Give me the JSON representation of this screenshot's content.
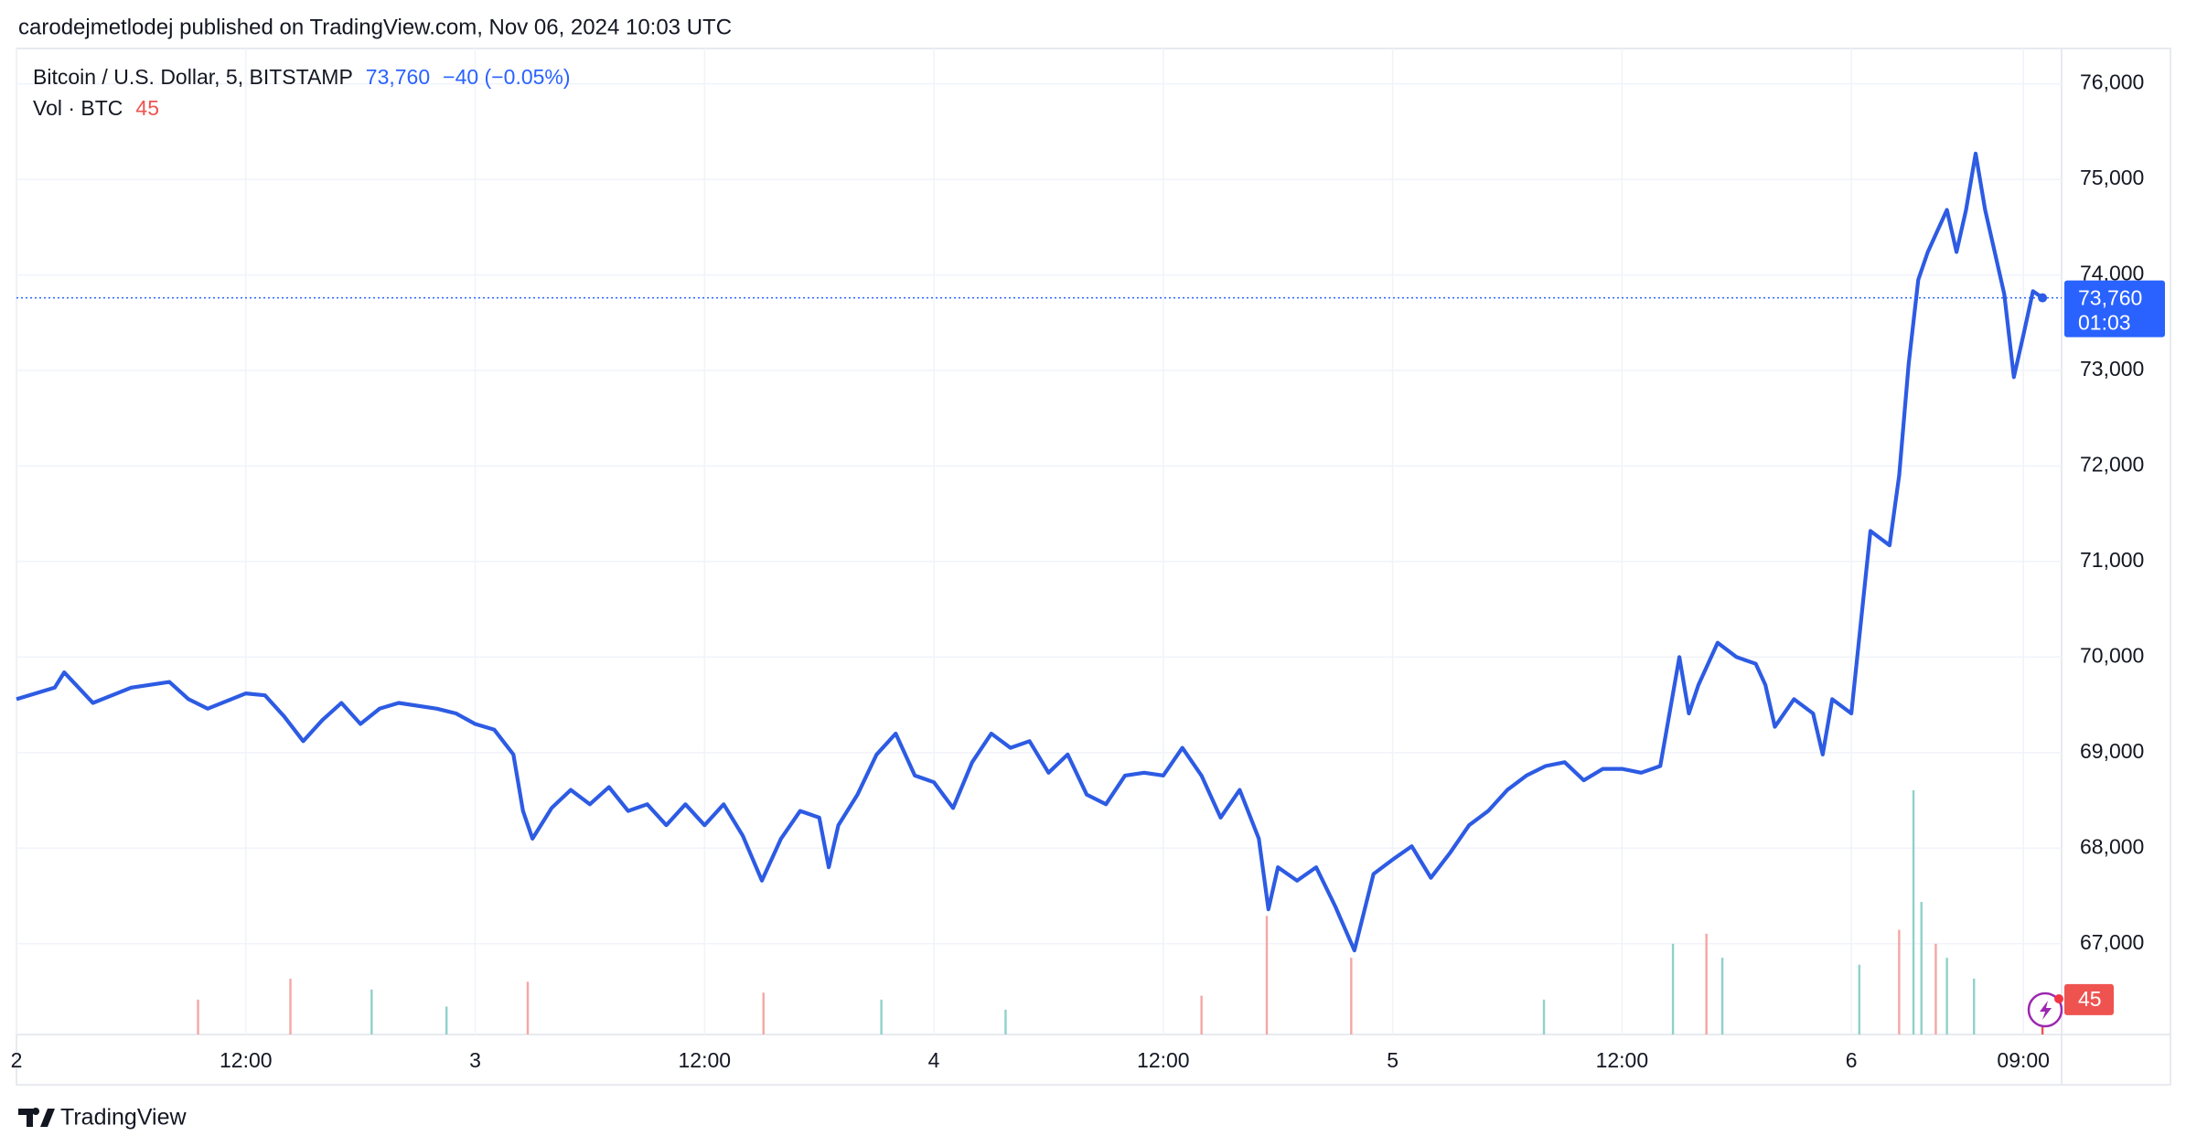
{
  "header": {
    "text": "carodejmetlodej published on TradingView.com, Nov 06, 2024 10:03 UTC"
  },
  "footer": {
    "brand": "TradingView"
  },
  "chart_data": {
    "type": "line",
    "grid": true,
    "x": [
      "2024-11-02 00:00",
      "2024-11-02 02:00",
      "2024-11-02 02:30",
      "2024-11-02 04:00",
      "2024-11-02 06:00",
      "2024-11-02 08:00",
      "2024-11-02 09:00",
      "2024-11-02 10:00",
      "2024-11-02 12:00",
      "2024-11-02 13:00",
      "2024-11-02 14:00",
      "2024-11-02 15:00",
      "2024-11-02 16:00",
      "2024-11-02 17:00",
      "2024-11-02 18:00",
      "2024-11-02 19:00",
      "2024-11-02 20:00",
      "2024-11-02 22:00",
      "2024-11-02 23:00",
      "2024-11-03 00:00",
      "2024-11-03 01:00",
      "2024-11-03 02:00",
      "2024-11-03 02:30",
      "2024-11-03 03:00",
      "2024-11-03 04:00",
      "2024-11-03 05:00",
      "2024-11-03 06:00",
      "2024-11-03 07:00",
      "2024-11-03 08:00",
      "2024-11-03 09:00",
      "2024-11-03 10:00",
      "2024-11-03 11:00",
      "2024-11-03 12:00",
      "2024-11-03 13:00",
      "2024-11-03 14:00",
      "2024-11-03 15:00",
      "2024-11-03 16:00",
      "2024-11-03 17:00",
      "2024-11-03 18:00",
      "2024-11-03 18:30",
      "2024-11-03 19:00",
      "2024-11-03 20:00",
      "2024-11-03 21:00",
      "2024-11-03 22:00",
      "2024-11-03 23:00",
      "2024-11-04 00:00",
      "2024-11-04 01:00",
      "2024-11-04 02:00",
      "2024-11-04 03:00",
      "2024-11-04 04:00",
      "2024-11-04 05:00",
      "2024-11-04 06:00",
      "2024-11-04 07:00",
      "2024-11-04 08:00",
      "2024-11-04 09:00",
      "2024-11-04 10:00",
      "2024-11-04 11:00",
      "2024-11-04 12:00",
      "2024-11-04 13:00",
      "2024-11-04 14:00",
      "2024-11-04 15:00",
      "2024-11-04 16:00",
      "2024-11-04 17:00",
      "2024-11-04 17:30",
      "2024-11-04 18:00",
      "2024-11-04 19:00",
      "2024-11-04 20:00",
      "2024-11-04 21:00",
      "2024-11-04 22:00",
      "2024-11-04 23:00",
      "2024-11-05 00:00",
      "2024-11-05 01:00",
      "2024-11-05 02:00",
      "2024-11-05 03:00",
      "2024-11-05 04:00",
      "2024-11-05 05:00",
      "2024-11-05 06:00",
      "2024-11-05 07:00",
      "2024-11-05 08:00",
      "2024-11-05 09:00",
      "2024-11-05 10:00",
      "2024-11-05 11:00",
      "2024-11-05 12:00",
      "2024-11-05 13:00",
      "2024-11-05 14:00",
      "2024-11-05 15:00",
      "2024-11-05 15:30",
      "2024-11-05 16:00",
      "2024-11-05 17:00",
      "2024-11-05 18:00",
      "2024-11-05 19:00",
      "2024-11-05 19:30",
      "2024-11-05 20:00",
      "2024-11-05 21:00",
      "2024-11-05 22:00",
      "2024-11-05 22:30",
      "2024-11-05 23:00",
      "2024-11-06 00:00",
      "2024-11-06 01:00",
      "2024-11-06 02:00",
      "2024-11-06 02:30",
      "2024-11-06 03:00",
      "2024-11-06 03:30",
      "2024-11-06 04:00",
      "2024-11-06 05:00",
      "2024-11-06 05:30",
      "2024-11-06 06:00",
      "2024-11-06 06:30",
      "2024-11-06 07:00",
      "2024-11-06 08:00",
      "2024-11-06 08:30",
      "2024-11-06 09:00",
      "2024-11-06 09:30",
      "2024-11-06 10:00"
    ],
    "series": [
      {
        "name": "Bitcoin / U.S. Dollar, 5, BITSTAMP",
        "color": "#2d5be3",
        "values": [
          69560,
          69680,
          69840,
          69520,
          69680,
          69740,
          69560,
          69460,
          69620,
          69600,
          69380,
          69120,
          69340,
          69520,
          69300,
          69460,
          69520,
          69460,
          69410,
          69300,
          69240,
          68980,
          68390,
          68100,
          68420,
          68610,
          68460,
          68640,
          68390,
          68460,
          68240,
          68460,
          68240,
          68460,
          68130,
          67660,
          68100,
          68390,
          68320,
          67800,
          68240,
          68560,
          68980,
          69200,
          68760,
          68690,
          68420,
          68900,
          69200,
          69050,
          69120,
          68790,
          68980,
          68560,
          68460,
          68760,
          68790,
          68760,
          69050,
          68760,
          68320,
          68610,
          68100,
          67360,
          67800,
          67660,
          67800,
          67390,
          66930,
          67730,
          67880,
          68020,
          67690,
          67950,
          68240,
          68390,
          68610,
          68760,
          68860,
          68900,
          68710,
          68830,
          68830,
          68790,
          68860,
          70000,
          69410,
          69710,
          70150,
          70000,
          69930,
          69710,
          69270,
          69560,
          69410,
          68980,
          69560,
          69410,
          71320,
          71170,
          71900,
          73070,
          73950,
          74240,
          74680,
          74240,
          74680,
          75270,
          74680,
          73800,
          72930,
          73370,
          73830,
          73760
        ]
      }
    ],
    "last_price": {
      "value": 73760,
      "label": "73,760",
      "change": -40,
      "change_label": "−40 (−0.05%)",
      "countdown": "01:03"
    },
    "volume": {
      "name": "Vol · BTC",
      "x": [
        "2024-11-02 09:30",
        "2024-11-02 14:20",
        "2024-11-02 18:35",
        "2024-11-02 22:30",
        "2024-11-03 02:45",
        "2024-11-03 15:05",
        "2024-11-03 21:15",
        "2024-11-04 03:45",
        "2024-11-04 14:00",
        "2024-11-04 17:25",
        "2024-11-04 21:50",
        "2024-11-05 07:55",
        "2024-11-05 14:40",
        "2024-11-05 16:25",
        "2024-11-05 17:15",
        "2024-11-06 00:25",
        "2024-11-06 02:30",
        "2024-11-06 03:15",
        "2024-11-06 03:40",
        "2024-11-06 04:25",
        "2024-11-06 05:00",
        "2024-11-06 06:25",
        "2024-11-06 10:00"
      ],
      "values": [
        45,
        72,
        58,
        36,
        68,
        54,
        45,
        32,
        50,
        153,
        99,
        45,
        117,
        130,
        99,
        90,
        135,
        315,
        171,
        117,
        99,
        72,
        45
      ],
      "colors": [
        "#f5a6a4",
        "#f5a6a4",
        "#8fd1cb",
        "#8fd1cb",
        "#f5a6a4",
        "#f5a6a4",
        "#8fd1cb",
        "#8fd1cb",
        "#f5a6a4",
        "#f5a6a4",
        "#f5a6a4",
        "#8fd1cb",
        "#8fd1cb",
        "#f5a6a4",
        "#8fd1cb",
        "#8fd1cb",
        "#f5a6a4",
        "#8fd1cb",
        "#8fd1cb",
        "#f5a6a4",
        "#8fd1cb",
        "#8fd1cb",
        "#ef5350"
      ]
    },
    "xlim": [
      "2024-11-02 00:00",
      "2024-11-06 11:00"
    ],
    "xticks": [
      {
        "value": "2024-11-02 00:00",
        "label": "2"
      },
      {
        "value": "2024-11-02 12:00",
        "label": "12:00"
      },
      {
        "value": "2024-11-03 00:00",
        "label": "3"
      },
      {
        "value": "2024-11-03 12:00",
        "label": "12:00"
      },
      {
        "value": "2024-11-04 00:00",
        "label": "4"
      },
      {
        "value": "2024-11-04 12:00",
        "label": "12:00"
      },
      {
        "value": "2024-11-05 00:00",
        "label": "5"
      },
      {
        "value": "2024-11-05 12:00",
        "label": "12:00"
      },
      {
        "value": "2024-11-06 00:00",
        "label": "6"
      },
      {
        "value": "2024-11-06 09:00",
        "label": "09:00"
      }
    ],
    "ylim": [
      66050,
      76370
    ],
    "yticks": [
      {
        "value": 67000,
        "label": "67,000"
      },
      {
        "value": 68000,
        "label": "68,000"
      },
      {
        "value": 69000,
        "label": "69,000"
      },
      {
        "value": 70000,
        "label": "70,000"
      },
      {
        "value": 71000,
        "label": "71,000"
      },
      {
        "value": 72000,
        "label": "72,000"
      },
      {
        "value": 73000,
        "label": "73,000"
      },
      {
        "value": 74000,
        "label": "74,000"
      },
      {
        "value": 75000,
        "label": "75,000"
      },
      {
        "value": 76000,
        "label": "76,000"
      }
    ]
  }
}
